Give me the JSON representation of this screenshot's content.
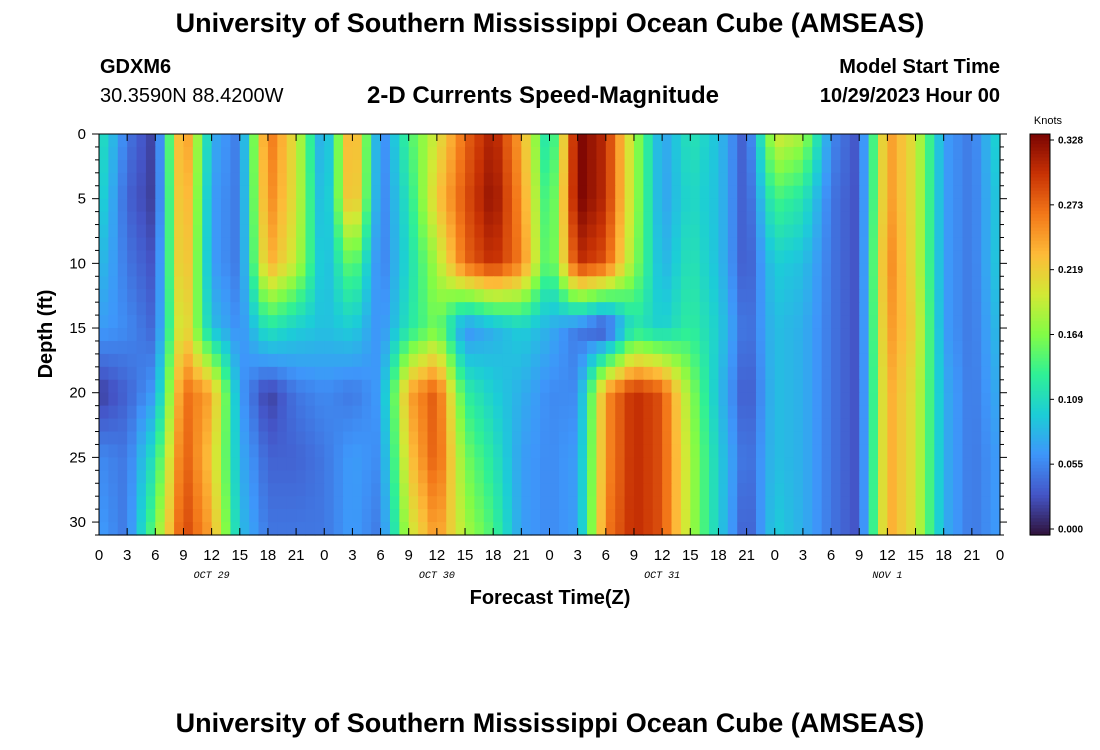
{
  "header": {
    "title": "University of Southern Mississippi Ocean Cube (AMSEAS)",
    "station": "GDXM6",
    "coordinates": "30.3590N  88.4200W",
    "subtitle": "2-D Currents Speed-Magnitude",
    "start_label": "Model Start Time",
    "start_value": "10/29/2023 Hour 00"
  },
  "footer": {
    "title": "University of Southern Mississippi Ocean Cube (AMSEAS)"
  },
  "chart_data": {
    "type": "heatmap",
    "xlabel": "Forecast Time(Z)",
    "ylabel": "Depth (ft)",
    "x_tick_labels": [
      "0",
      "3",
      "6",
      "9",
      "12",
      "15",
      "18",
      "21",
      "0",
      "3",
      "6",
      "9",
      "12",
      "15",
      "18",
      "21",
      "0",
      "3",
      "6",
      "9",
      "12",
      "15",
      "18",
      "21",
      "0",
      "3",
      "6",
      "9",
      "12",
      "15",
      "18",
      "21",
      "0"
    ],
    "date_labels": [
      {
        "label": "OCT 29",
        "at_hour": 12
      },
      {
        "label": "OCT 30",
        "at_hour": 36
      },
      {
        "label": "OCT 31",
        "at_hour": 60
      },
      {
        "label": "NOV 1",
        "at_hour": 84
      }
    ],
    "x_range_hours": [
      0,
      96
    ],
    "y_ticks": [
      0,
      5,
      10,
      15,
      20,
      25,
      30
    ],
    "y_range_ft": [
      0,
      31
    ],
    "colorbar": {
      "unit": "Knots",
      "ticks": [
        "0.328",
        "0.273",
        "0.219",
        "0.164",
        "0.109",
        "0.055",
        "0.000"
      ],
      "min": 0.0,
      "max": 0.328
    },
    "depth_ft": [
      0,
      5,
      10,
      15,
      20,
      25,
      31
    ],
    "time_hours": [
      0,
      3,
      6,
      9,
      12,
      15,
      18,
      21,
      24,
      27,
      30,
      33,
      36,
      39,
      42,
      45,
      48,
      51,
      54,
      57,
      60,
      63,
      66,
      69,
      72,
      75,
      78,
      81,
      84,
      87,
      90,
      93,
      96
    ],
    "speed_knots": [
      [
        0.12,
        0.05,
        0.02,
        0.27,
        0.08,
        0.05,
        0.27,
        0.2,
        0.06,
        0.26,
        0.05,
        0.14,
        0.2,
        0.27,
        0.31,
        0.24,
        0.1,
        0.33,
        0.3,
        0.18,
        0.07,
        0.12,
        0.09,
        0.03,
        0.2,
        0.18,
        0.06,
        0.03,
        0.25,
        0.2,
        0.07,
        0.05,
        0.11
      ],
      [
        0.11,
        0.04,
        0.02,
        0.26,
        0.07,
        0.05,
        0.26,
        0.2,
        0.07,
        0.25,
        0.05,
        0.12,
        0.22,
        0.28,
        0.32,
        0.25,
        0.12,
        0.33,
        0.3,
        0.18,
        0.07,
        0.11,
        0.09,
        0.03,
        0.14,
        0.12,
        0.05,
        0.03,
        0.25,
        0.2,
        0.07,
        0.05,
        0.1
      ],
      [
        0.09,
        0.05,
        0.03,
        0.25,
        0.07,
        0.05,
        0.24,
        0.19,
        0.08,
        0.16,
        0.05,
        0.11,
        0.18,
        0.27,
        0.3,
        0.26,
        0.13,
        0.3,
        0.28,
        0.17,
        0.08,
        0.12,
        0.09,
        0.03,
        0.1,
        0.09,
        0.05,
        0.03,
        0.26,
        0.2,
        0.07,
        0.05,
        0.1
      ],
      [
        0.07,
        0.06,
        0.04,
        0.23,
        0.09,
        0.06,
        0.12,
        0.1,
        0.09,
        0.1,
        0.06,
        0.12,
        0.16,
        0.06,
        0.08,
        0.1,
        0.08,
        0.05,
        0.02,
        0.12,
        0.1,
        0.13,
        0.1,
        0.04,
        0.09,
        0.08,
        0.05,
        0.03,
        0.25,
        0.21,
        0.07,
        0.05,
        0.09
      ],
      [
        0.02,
        0.04,
        0.07,
        0.27,
        0.24,
        0.07,
        0.02,
        0.05,
        0.06,
        0.05,
        0.07,
        0.24,
        0.28,
        0.13,
        0.1,
        0.08,
        0.06,
        0.06,
        0.25,
        0.3,
        0.28,
        0.17,
        0.09,
        0.03,
        0.09,
        0.08,
        0.05,
        0.03,
        0.24,
        0.2,
        0.08,
        0.05,
        0.08
      ],
      [
        0.06,
        0.05,
        0.12,
        0.28,
        0.22,
        0.08,
        0.04,
        0.04,
        0.05,
        0.07,
        0.06,
        0.22,
        0.28,
        0.16,
        0.12,
        0.07,
        0.06,
        0.07,
        0.25,
        0.3,
        0.28,
        0.18,
        0.1,
        0.04,
        0.09,
        0.08,
        0.05,
        0.03,
        0.24,
        0.2,
        0.08,
        0.05,
        0.07
      ],
      [
        0.07,
        0.05,
        0.16,
        0.29,
        0.24,
        0.09,
        0.05,
        0.05,
        0.05,
        0.07,
        0.05,
        0.19,
        0.25,
        0.18,
        0.14,
        0.07,
        0.06,
        0.07,
        0.26,
        0.3,
        0.28,
        0.18,
        0.1,
        0.03,
        0.1,
        0.08,
        0.05,
        0.03,
        0.24,
        0.2,
        0.08,
        0.05,
        0.07
      ]
    ]
  }
}
